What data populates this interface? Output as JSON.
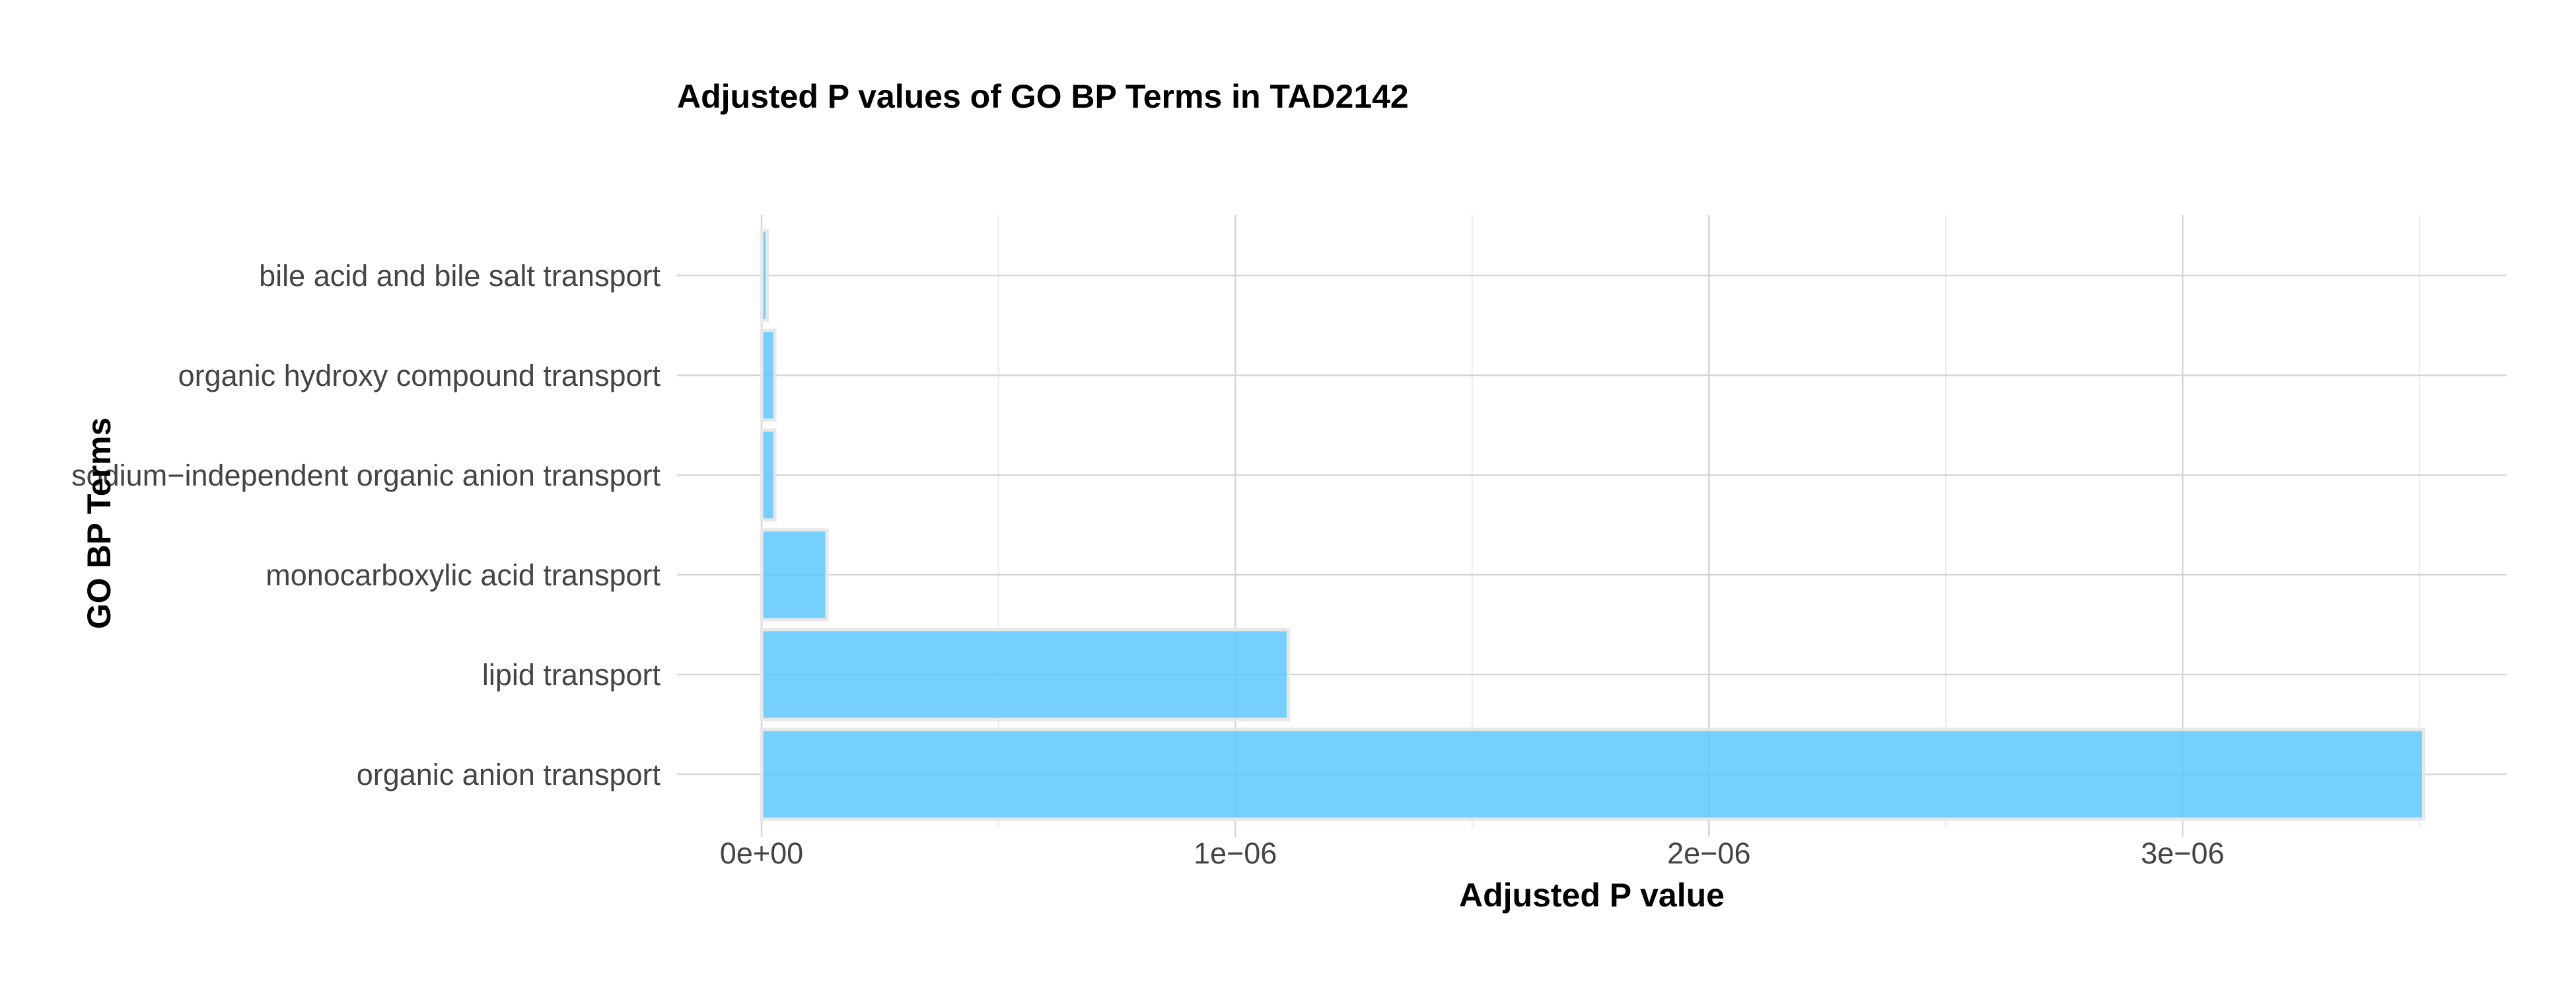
{
  "chart_data": {
    "type": "bar",
    "orientation": "horizontal",
    "title": "Adjusted P values of GO BP Terms in TAD2142",
    "xlabel": "Adjusted P value",
    "ylabel": "GO BP Terms",
    "categories": [
      "bile acid and bile salt transport",
      "organic hydroxy compound transport",
      "sodium−independent organic anion transport",
      "monocarboxylic acid transport",
      "lipid transport",
      "organic anion transport"
    ],
    "values": [
      1.2e-08,
      2.8e-08,
      2.8e-08,
      1.38e-07,
      1.112e-06,
      3.509e-06
    ],
    "xlim": [
      0,
      3.509e-06
    ],
    "xticks": [
      0,
      1e-06,
      2e-06,
      3e-06
    ],
    "xtick_labels": [
      "0e+00",
      "1e−06",
      "2e−06",
      "3e−06"
    ],
    "minor_xticks": [
      5e-07,
      1.5e-06,
      2.5e-06,
      3.5e-06
    ],
    "grid": true,
    "bar_color": "#5ec8fd"
  }
}
